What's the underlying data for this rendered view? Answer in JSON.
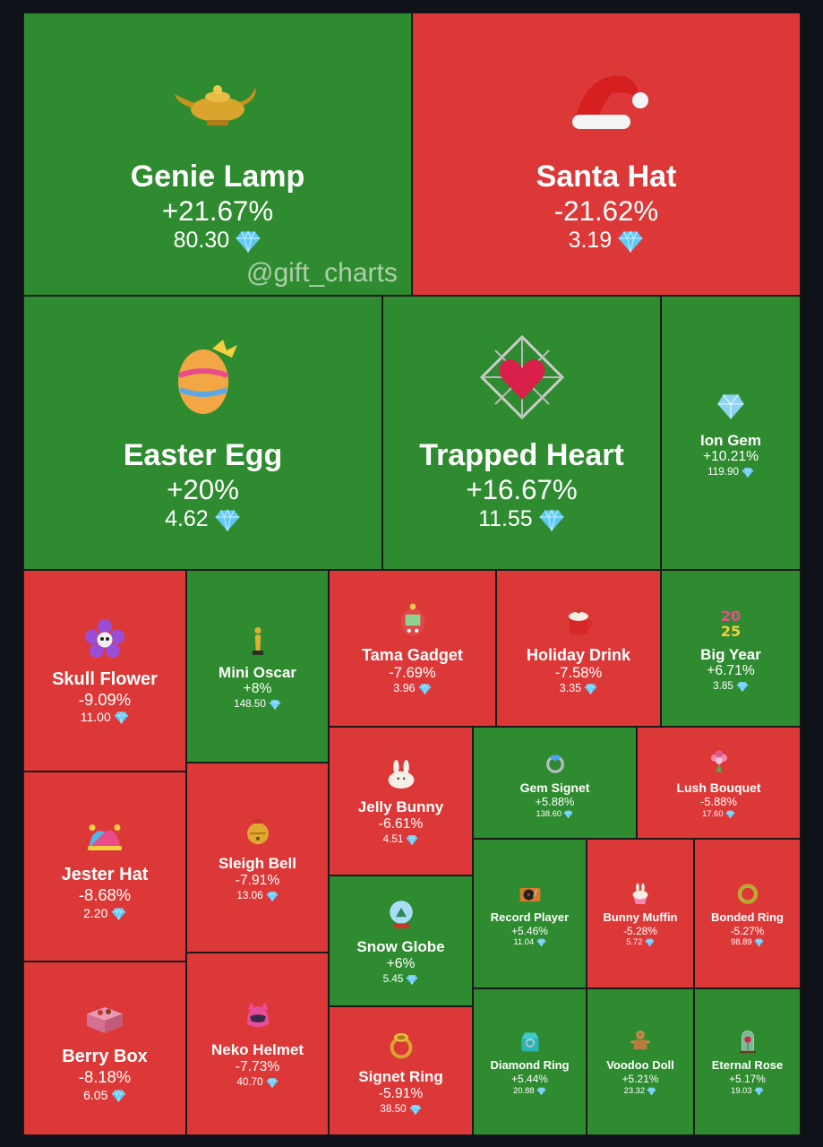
{
  "watermark": "@gift_charts",
  "colors": {
    "up": "#2e8b2f",
    "down": "#dd3838",
    "background": "#0f1218"
  },
  "chart_data": {
    "type": "heatmap",
    "items": [
      {
        "name": "Genie Lamp",
        "change": "+21.67%",
        "price": "80.30",
        "icon": "genie-lamp-icon"
      },
      {
        "name": "Santa Hat",
        "change": "-21.62%",
        "price": "3.19",
        "icon": "santa-hat-icon"
      },
      {
        "name": "Easter Egg",
        "change": "+20%",
        "price": "4.62",
        "icon": "easter-egg-icon"
      },
      {
        "name": "Trapped Heart",
        "change": "+16.67%",
        "price": "11.55",
        "icon": "trapped-heart-icon"
      },
      {
        "name": "Ion Gem",
        "change": "+10.21%",
        "price": "119.90",
        "icon": "ion-gem-icon"
      },
      {
        "name": "Skull Flower",
        "change": "-9.09%",
        "price": "11.00",
        "icon": "skull-flower-icon"
      },
      {
        "name": "Mini Oscar",
        "change": "+8%",
        "price": "148.50",
        "icon": "mini-oscar-icon"
      },
      {
        "name": "Tama Gadget",
        "change": "-7.69%",
        "price": "3.96",
        "icon": "tama-gadget-icon"
      },
      {
        "name": "Holiday Drink",
        "change": "-7.58%",
        "price": "3.35",
        "icon": "holiday-drink-icon"
      },
      {
        "name": "Big Year",
        "change": "+6.71%",
        "price": "3.85",
        "icon": "big-year-icon"
      },
      {
        "name": "Jester Hat",
        "change": "-8.68%",
        "price": "2.20",
        "icon": "jester-hat-icon"
      },
      {
        "name": "Sleigh Bell",
        "change": "-7.91%",
        "price": "13.06",
        "icon": "sleigh-bell-icon"
      },
      {
        "name": "Jelly Bunny",
        "change": "-6.61%",
        "price": "4.51",
        "icon": "jelly-bunny-icon"
      },
      {
        "name": "Gem Signet",
        "change": "+5.88%",
        "price": "138.60",
        "icon": "gem-signet-icon"
      },
      {
        "name": "Lush Bouquet",
        "change": "-5.88%",
        "price": "17.60",
        "icon": "lush-bouquet-icon"
      },
      {
        "name": "Snow Globe",
        "change": "+6%",
        "price": "5.45",
        "icon": "snow-globe-icon"
      },
      {
        "name": "Record Player",
        "change": "+5.46%",
        "price": "11.04",
        "icon": "record-player-icon"
      },
      {
        "name": "Bunny Muffin",
        "change": "-5.28%",
        "price": "5.72",
        "icon": "bunny-muffin-icon"
      },
      {
        "name": "Bonded Ring",
        "change": "-5.27%",
        "price": "98.89",
        "icon": "bonded-ring-icon"
      },
      {
        "name": "Berry Box",
        "change": "-8.18%",
        "price": "6.05",
        "icon": "berry-box-icon"
      },
      {
        "name": "Neko Helmet",
        "change": "-7.73%",
        "price": "40.70",
        "icon": "neko-helmet-icon"
      },
      {
        "name": "Signet Ring",
        "change": "-5.91%",
        "price": "38.50",
        "icon": "signet-ring-icon"
      },
      {
        "name": "Diamond Ring",
        "change": "+5.44%",
        "price": "20.88",
        "icon": "diamond-ring-icon"
      },
      {
        "name": "Voodoo Doll",
        "change": "+5.21%",
        "price": "23.32",
        "icon": "voodoo-doll-icon"
      },
      {
        "name": "Eternal Rose",
        "change": "+5.17%",
        "price": "19.03",
        "icon": "eternal-rose-icon"
      }
    ]
  }
}
